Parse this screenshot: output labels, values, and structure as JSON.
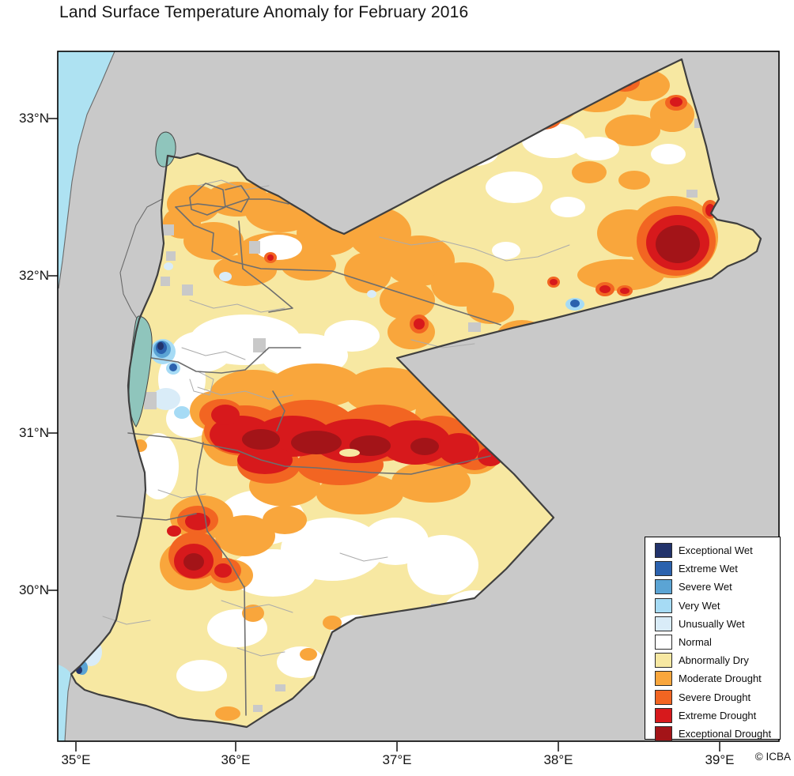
{
  "title": "Land Surface Temperature Anomaly for February 2016",
  "credit": "© ICBA",
  "axes": {
    "x_ticks": [
      "35°E",
      "36°E",
      "37°E",
      "38°E",
      "39°E"
    ],
    "y_ticks": [
      "33°N",
      "32°N",
      "31°N",
      "30°N"
    ]
  },
  "legend": {
    "items": [
      {
        "label": "Exceptional Wet",
        "color": "#22336B"
      },
      {
        "label": "Extreme Wet",
        "color": "#2B62AE"
      },
      {
        "label": "Severe Wet",
        "color": "#5BA4D4"
      },
      {
        "label": "Very Wet",
        "color": "#A6DBF5"
      },
      {
        "label": "Unusually Wet",
        "color": "#D9ECF8"
      },
      {
        "label": "Normal",
        "color": "#FFFFFF"
      },
      {
        "label": "Abnormally Dry",
        "color": "#F7E8A2"
      },
      {
        "label": "Moderate Drought",
        "color": "#F9A63C"
      },
      {
        "label": "Severe Drought",
        "color": "#F26522"
      },
      {
        "label": "Extreme Drought",
        "color": "#D7191C"
      },
      {
        "label": "Exceptional Drought",
        "color": "#A31418"
      }
    ]
  },
  "map": {
    "region": "Jordan",
    "colors": {
      "land": "#C9C9C9",
      "sea": "#AEE2F2",
      "lake": "#8FC5BC",
      "border": "#3F3F3F",
      "admin": "#6E6E6E",
      "subadmin": "#ABABAB",
      "frame": "#000000"
    }
  }
}
